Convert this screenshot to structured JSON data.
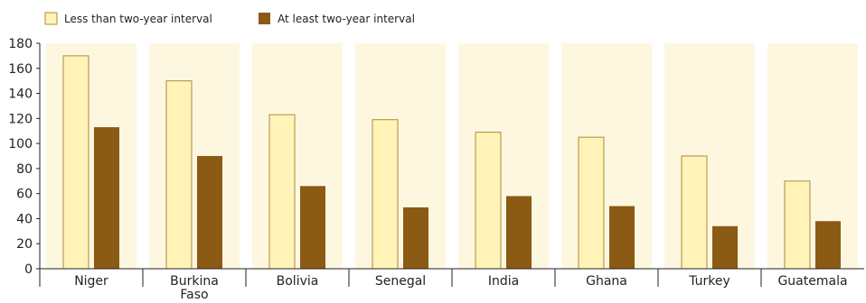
{
  "chart_data": {
    "type": "bar",
    "categories": [
      "Niger",
      "Burkina Faso",
      "Bolivia",
      "Senegal",
      "India",
      "Ghana",
      "Turkey",
      "Guatemala"
    ],
    "category_lines": [
      [
        "Niger"
      ],
      [
        "Burkina",
        "Faso"
      ],
      [
        "Bolivia"
      ],
      [
        "Senegal"
      ],
      [
        "India"
      ],
      [
        "Ghana"
      ],
      [
        "Turkey"
      ],
      [
        "Guatemala"
      ]
    ],
    "series": [
      {
        "name": "Less than two-year interval",
        "values": [
          170,
          150,
          123,
          119,
          109,
          105,
          90,
          70
        ],
        "color": "#fff3b8"
      },
      {
        "name": "At least two-year interval",
        "values": [
          113,
          90,
          66,
          49,
          58,
          50,
          34,
          38
        ],
        "color": "#8b5a14"
      }
    ],
    "ylim": [
      0,
      180
    ],
    "yticks": [
      "0",
      "20",
      "40",
      "60",
      "80",
      "100",
      "120",
      "140",
      "160",
      "180"
    ],
    "legend_position": "top-left",
    "panel_color": "#fdf7e0",
    "bar_outline_color": "#b08a3a"
  }
}
